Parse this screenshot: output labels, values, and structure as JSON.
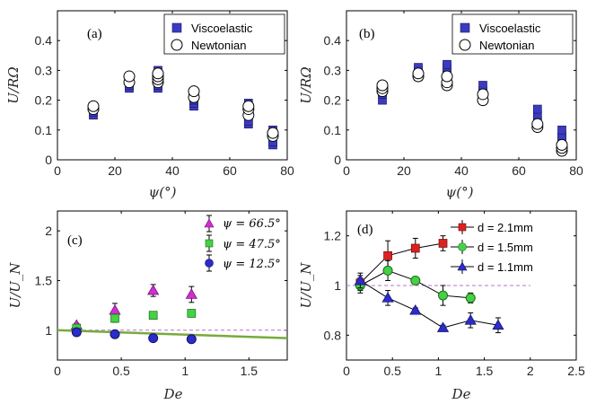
{
  "colors": {
    "viscoelastic": "#3b3bbf",
    "newtonian": "#ffffff",
    "magenta": "#d22cd2",
    "green_marker": "#44d144",
    "blue_marker": "#2c2cc8",
    "red_marker": "#e02020",
    "fit_line": "#77ab3a",
    "dashed_line": "#b870d0"
  },
  "chart_data": [
    {
      "panel": "(a)",
      "type": "scatter",
      "xlabel": "ψ(°)",
      "ylabel": "U/RΩ",
      "xlim": [
        0,
        80
      ],
      "ylim": [
        0,
        0.5
      ],
      "xticks": [
        "0",
        "20",
        "40",
        "60",
        "80"
      ],
      "yticks": [
        "0",
        "0.1",
        "0.2",
        "0.3",
        "0.4"
      ],
      "legend": {
        "position": "top-right",
        "entries": [
          "Viscoelastic",
          "Newtonian"
        ]
      },
      "series": [
        {
          "name": "Viscoelastic",
          "marker": "square",
          "x": [
            12.5,
            12.5,
            12.5,
            25,
            25,
            25,
            35,
            35,
            35,
            35,
            35,
            35,
            47.5,
            47.5,
            47.5,
            66.5,
            66.5,
            66.5,
            66.5,
            66.5,
            75,
            75,
            75,
            75
          ],
          "y": [
            0.15,
            0.16,
            0.17,
            0.24,
            0.25,
            0.26,
            0.24,
            0.25,
            0.27,
            0.28,
            0.29,
            0.3,
            0.18,
            0.19,
            0.2,
            0.12,
            0.13,
            0.15,
            0.17,
            0.19,
            0.05,
            0.06,
            0.08,
            0.1
          ]
        },
        {
          "name": "Newtonian",
          "marker": "circle",
          "x": [
            12.5,
            12.5,
            25,
            25,
            35,
            35,
            35,
            35,
            47.5,
            47.5,
            66.5,
            66.5,
            66.5,
            75,
            75
          ],
          "y": [
            0.17,
            0.18,
            0.26,
            0.28,
            0.26,
            0.27,
            0.28,
            0.29,
            0.21,
            0.23,
            0.15,
            0.17,
            0.18,
            0.08,
            0.09
          ]
        }
      ]
    },
    {
      "panel": "(b)",
      "type": "scatter",
      "xlabel": "ψ(°)",
      "ylabel": "U/RΩ",
      "xlim": [
        0,
        80
      ],
      "ylim": [
        0,
        0.5
      ],
      "xticks": [
        "0",
        "20",
        "40",
        "60",
        "80"
      ],
      "yticks": [
        "0",
        "0.1",
        "0.2",
        "0.3",
        "0.4"
      ],
      "legend": {
        "position": "top-right",
        "entries": [
          "Viscoelastic",
          "Newtonian"
        ]
      },
      "series": [
        {
          "name": "Viscoelastic",
          "marker": "square",
          "x": [
            12.5,
            12.5,
            12.5,
            12.5,
            25,
            25,
            25,
            25,
            35,
            35,
            35,
            35,
            35,
            47.5,
            47.5,
            66.5,
            66.5,
            66.5,
            75,
            75,
            75
          ],
          "y": [
            0.2,
            0.22,
            0.23,
            0.24,
            0.28,
            0.29,
            0.3,
            0.31,
            0.27,
            0.28,
            0.29,
            0.31,
            0.32,
            0.23,
            0.25,
            0.13,
            0.15,
            0.17,
            0.07,
            0.08,
            0.1
          ]
        },
        {
          "name": "Newtonian",
          "marker": "circle",
          "x": [
            12.5,
            12.5,
            12.5,
            25,
            25,
            35,
            35,
            35,
            47.5,
            47.5,
            66.5,
            66.5,
            75,
            75,
            75
          ],
          "y": [
            0.23,
            0.24,
            0.25,
            0.28,
            0.29,
            0.25,
            0.26,
            0.28,
            0.2,
            0.22,
            0.11,
            0.12,
            0.03,
            0.04,
            0.05
          ]
        }
      ]
    },
    {
      "panel": "(c)",
      "type": "scatter",
      "xlabel": "De",
      "ylabel": "U/U_N",
      "xlim": [
        0,
        1.8
      ],
      "ylim": [
        0.7,
        2.2
      ],
      "xticks": [
        "0",
        "0.5",
        "1",
        "1.5"
      ],
      "yticks": [
        "1",
        "1.5",
        "2"
      ],
      "legend": {
        "position": "top-right",
        "entries": [
          "ψ = 66.5°",
          "ψ = 47.5°",
          "ψ = 12.5°"
        ]
      },
      "series": [
        {
          "name": "ψ = 66.5°",
          "marker": "triangle",
          "x": [
            0.15,
            0.45,
            0.75,
            1.05
          ],
          "y": [
            1.05,
            1.2,
            1.4,
            1.36
          ],
          "err": [
            0.02,
            0.07,
            0.06,
            0.08
          ]
        },
        {
          "name": "ψ = 47.5°",
          "marker": "square",
          "x": [
            0.15,
            0.45,
            0.75,
            1.05
          ],
          "y": [
            1.02,
            1.12,
            1.15,
            1.17
          ],
          "err": [
            0.02,
            0.04,
            0.03,
            0.03
          ]
        },
        {
          "name": "ψ = 12.5°",
          "marker": "circle",
          "x": [
            0.15,
            0.45,
            0.75,
            1.05
          ],
          "y": [
            0.98,
            0.96,
            0.92,
            0.91
          ],
          "err": [
            0.02,
            0.02,
            0.02,
            0.02
          ]
        }
      ],
      "fit_line": {
        "x": [
          0,
          1.8
        ],
        "y": [
          1.0,
          0.92
        ]
      },
      "reference_line": 1.0
    },
    {
      "panel": "(d)",
      "type": "line",
      "xlabel": "De",
      "ylabel": "U/U_N",
      "xlim": [
        0,
        2.5
      ],
      "ylim": [
        0.7,
        1.3
      ],
      "xticks": [
        "0",
        "0.5",
        "1",
        "1.5",
        "2",
        "2.5"
      ],
      "yticks": [
        "0.8",
        "1",
        "1.2"
      ],
      "legend": {
        "position": "top-right",
        "entries": [
          "d = 2.1mm",
          "d = 1.5mm",
          "d = 1.1mm"
        ]
      },
      "series": [
        {
          "name": "d = 2.1mm",
          "marker": "square",
          "x": [
            0.15,
            0.45,
            0.75,
            1.05
          ],
          "y": [
            1.01,
            1.12,
            1.15,
            1.17
          ],
          "err": [
            0.03,
            0.06,
            0.04,
            0.03
          ]
        },
        {
          "name": "d = 1.5mm",
          "marker": "circle",
          "x": [
            0.15,
            0.45,
            0.75,
            1.05,
            1.35
          ],
          "y": [
            1.0,
            1.06,
            1.02,
            0.96,
            0.95
          ],
          "err": [
            0.03,
            0.04,
            0.01,
            0.04,
            0.02
          ]
        },
        {
          "name": "d = 1.1mm",
          "marker": "triangle",
          "x": [
            0.15,
            0.45,
            0.75,
            1.05,
            1.35,
            1.65
          ],
          "y": [
            1.02,
            0.95,
            0.9,
            0.83,
            0.86,
            0.84
          ],
          "err": [
            0.03,
            0.03,
            0.01,
            0.01,
            0.03,
            0.03
          ]
        }
      ],
      "reference_line": 1.0
    }
  ]
}
